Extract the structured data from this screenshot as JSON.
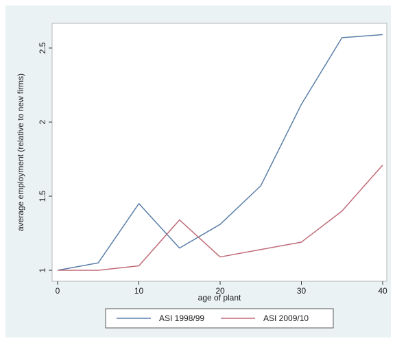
{
  "chart_data": {
    "type": "line",
    "title": "",
    "xlabel": "age of plant",
    "ylabel": "average employment (relative to new firms)",
    "xlim": [
      0,
      40
    ],
    "ylim": [
      1,
      2.6
    ],
    "x_ticks": [
      "0",
      "10",
      "20",
      "30",
      "40"
    ],
    "y_ticks": [
      "1",
      "1.5",
      "2",
      "2.5"
    ],
    "x": [
      0,
      5,
      10,
      15,
      20,
      25,
      30,
      35,
      40
    ],
    "series": [
      {
        "name": "ASI 1998/99",
        "color": "#5a7ea8",
        "values": [
          1.0,
          1.05,
          1.45,
          1.15,
          1.31,
          1.57,
          2.12,
          2.57,
          2.59
        ]
      },
      {
        "name": "ASI 2009/10",
        "color": "#c06a78",
        "values": [
          1.0,
          1.0,
          1.03,
          1.34,
          1.09,
          1.14,
          1.19,
          1.4,
          1.71
        ]
      }
    ],
    "grid": false,
    "legend_position": "bottom"
  }
}
